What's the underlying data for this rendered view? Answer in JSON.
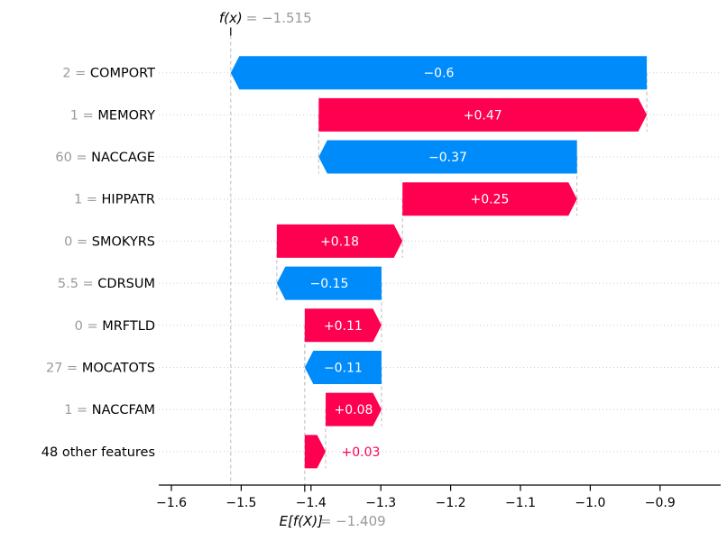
{
  "chart_data": {
    "type": "waterfall",
    "library_style": "shap-waterfall",
    "fx": {
      "label": "f(x)",
      "value": -1.515,
      "value_text": "= −1.515"
    },
    "base": {
      "label": "E[f(X)]",
      "value": -1.409,
      "value_text": "= −1.409"
    },
    "rows": [
      {
        "value_label": "2",
        "feature": "COMPORT",
        "contribution": -0.6,
        "bar_label": "−0.6",
        "label_outside": false
      },
      {
        "value_label": "1",
        "feature": "MEMORY",
        "contribution": 0.47,
        "bar_label": "+0.47",
        "label_outside": false
      },
      {
        "value_label": "60",
        "feature": "NACCAGE",
        "contribution": -0.37,
        "bar_label": "−0.37",
        "label_outside": false
      },
      {
        "value_label": "1",
        "feature": "HIPPATR",
        "contribution": 0.25,
        "bar_label": "+0.25",
        "label_outside": false
      },
      {
        "value_label": "0",
        "feature": "SMOKYRS",
        "contribution": 0.18,
        "bar_label": "+0.18",
        "label_outside": false
      },
      {
        "value_label": "5.5",
        "feature": "CDRSUM",
        "contribution": -0.15,
        "bar_label": "−0.15",
        "label_outside": false
      },
      {
        "value_label": "0",
        "feature": "MRFTLD",
        "contribution": 0.11,
        "bar_label": "+0.11",
        "label_outside": false
      },
      {
        "value_label": "27",
        "feature": "MOCATOTS",
        "contribution": -0.11,
        "bar_label": "−0.11",
        "label_outside": false
      },
      {
        "value_label": "1",
        "feature": "NACCFAM",
        "contribution": 0.08,
        "bar_label": "+0.08",
        "label_outside": false
      },
      {
        "value_label": null,
        "feature": "48 other features",
        "contribution": 0.03,
        "bar_label": "+0.03",
        "label_outside": true
      }
    ],
    "equals_separator": " = ",
    "xticks": [
      {
        "v": -1.6,
        "label": "−1.6"
      },
      {
        "v": -1.5,
        "label": "−1.5"
      },
      {
        "v": -1.4,
        "label": "−1.4"
      },
      {
        "v": -1.3,
        "label": "−1.3"
      },
      {
        "v": -1.2,
        "label": "−1.2"
      },
      {
        "v": -1.1,
        "label": "−1.1"
      },
      {
        "v": -1.0,
        "label": "−1.0"
      },
      {
        "v": -0.9,
        "label": "−0.9"
      }
    ],
    "xlim": [
      -1.618,
      -0.813
    ],
    "grid": true,
    "colors": {
      "positive": "#ff0051",
      "negative": "#008bfb",
      "bar_text": "#ffffff",
      "muted_text": "#999999",
      "axis": "#000000",
      "connector": "#bbbbbb",
      "gridline": "#cccccc",
      "background": "#ffffff"
    }
  }
}
